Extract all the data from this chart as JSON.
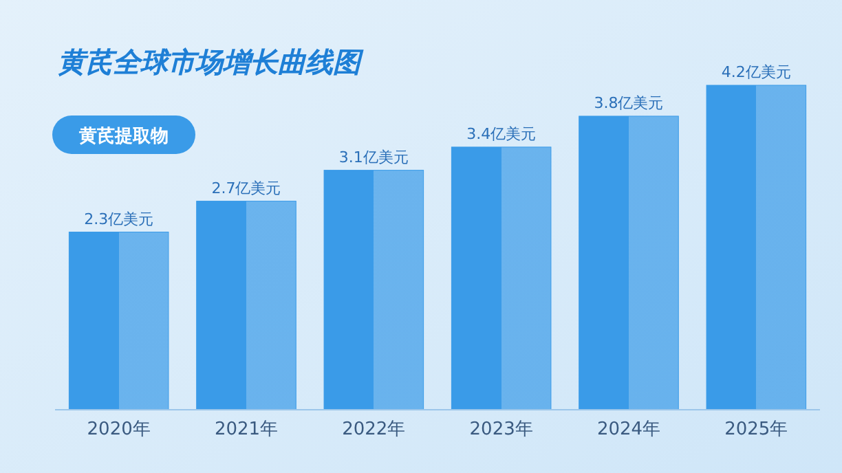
{
  "chart_data": {
    "type": "bar",
    "title": "黄芪全球市场增长曲线图",
    "categories": [
      "2020年",
      "2021年",
      "2022年",
      "2023年",
      "2024年",
      "2025年"
    ],
    "series": [
      {
        "name": "黄芪提取物",
        "color": "#3a9be8",
        "values": [
          2.3,
          2.7,
          3.1,
          3.4,
          3.8,
          4.2
        ],
        "value_labels": [
          "2.3亿美元",
          "2.7亿美元",
          "3.1亿美元",
          "3.4亿美元",
          "3.8亿美元",
          "4.2亿美元"
        ]
      }
    ],
    "legend": "top left"
  }
}
